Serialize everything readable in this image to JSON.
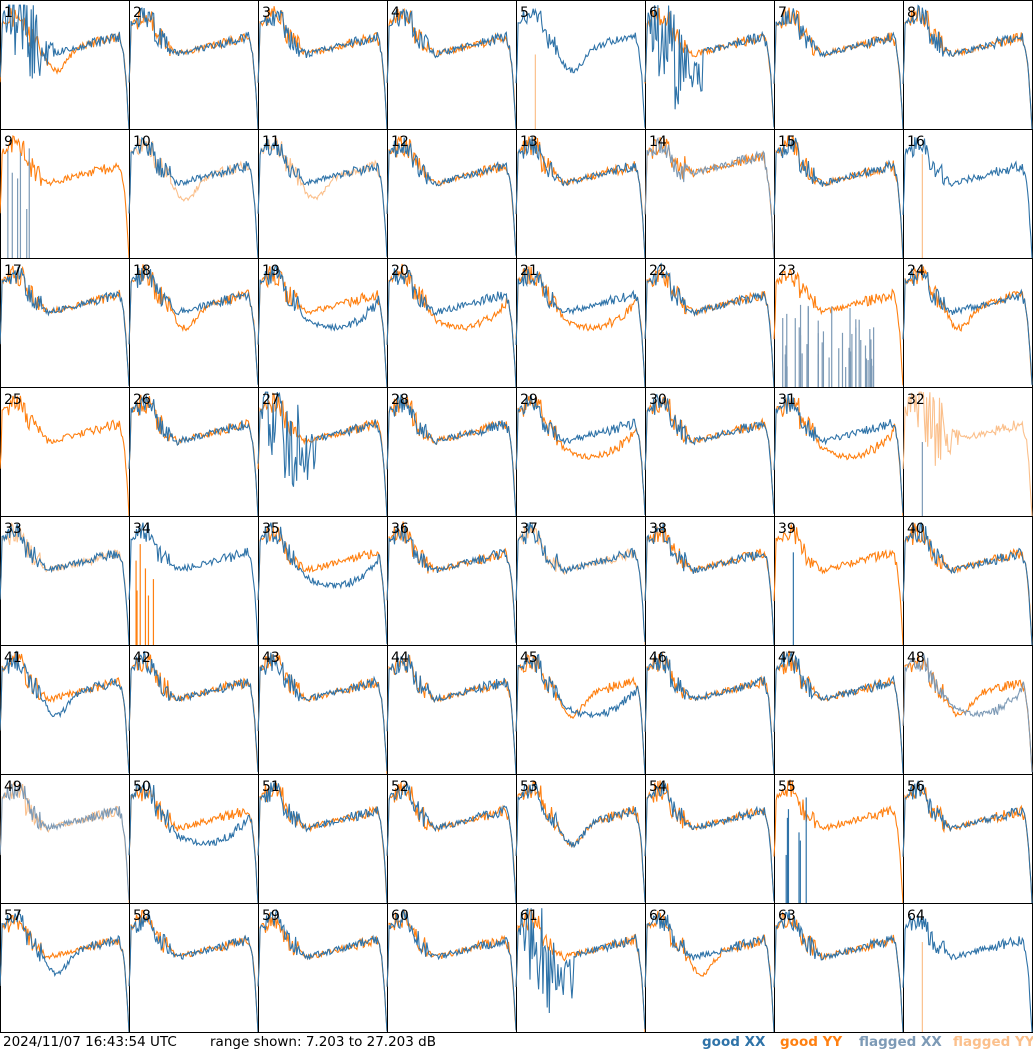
{
  "footer": {
    "timestamp": "2024/11/07 16:43:54 UTC",
    "range_text": "range shown: 7.203 to 27.203 dB"
  },
  "legend": [
    {
      "key": "good_xx",
      "label": "good XX",
      "color": "#2f73a8"
    },
    {
      "key": "good_yy",
      "label": "good YY",
      "color": "#ff8011"
    },
    {
      "key": "flagged_xx",
      "label": "flagged XX",
      "color": "#7d9ab6"
    },
    {
      "key": "flagged_yy",
      "label": "flagged YY",
      "color": "#fbc08c"
    }
  ],
  "chart_data": {
    "type": "line",
    "layout": "small-multiples 8x8",
    "xlabel": "",
    "ylabel": "",
    "ylim": [
      7.203,
      27.203
    ],
    "y_units": "dB",
    "panels": [
      {
        "id": "1",
        "xx": "xnoisy",
        "yy": "dip"
      },
      {
        "id": "2",
        "xx": "normal",
        "yy": "normal"
      },
      {
        "id": "3",
        "xx": "normal",
        "yy": "normal"
      },
      {
        "id": "4",
        "xx": "normal",
        "yy": "normal"
      },
      {
        "id": "5",
        "xx": "dip",
        "yy": "flag_spike"
      },
      {
        "id": "6",
        "xx": "wild",
        "yy": "normal"
      },
      {
        "id": "7",
        "xx": "normal",
        "yy": "normal"
      },
      {
        "id": "8",
        "xx": "normal",
        "yy": "normal"
      },
      {
        "id": "9",
        "xx": "flag_spikes",
        "yy": "normal"
      },
      {
        "id": "10",
        "xx": "normal",
        "yy": "flag_dip"
      },
      {
        "id": "11",
        "xx": "normal",
        "yy": "flag_dip"
      },
      {
        "id": "12",
        "xx": "normal",
        "yy": "normal"
      },
      {
        "id": "13",
        "xx": "normal",
        "yy": "normal"
      },
      {
        "id": "14",
        "xx": "flag_high",
        "yy": "high"
      },
      {
        "id": "15",
        "xx": "normal",
        "yy": "normal"
      },
      {
        "id": "16",
        "xx": "normal",
        "yy": "flag_spike"
      },
      {
        "id": "17",
        "xx": "normal",
        "yy": "normal"
      },
      {
        "id": "18",
        "xx": "normal",
        "yy": "dip"
      },
      {
        "id": "19",
        "xx": "low",
        "yy": "normal"
      },
      {
        "id": "20",
        "xx": "normal",
        "yy": "low"
      },
      {
        "id": "21",
        "xx": "normal",
        "yy": "low"
      },
      {
        "id": "22",
        "xx": "normal",
        "yy": "normal"
      },
      {
        "id": "23",
        "xx": "flag_noise",
        "yy": "normal"
      },
      {
        "id": "24",
        "xx": "normal",
        "yy": "dip"
      },
      {
        "id": "25",
        "xx": "none",
        "yy": "normal"
      },
      {
        "id": "26",
        "xx": "normal",
        "yy": "normal"
      },
      {
        "id": "27",
        "xx": "wild",
        "yy": "normal"
      },
      {
        "id": "28",
        "xx": "normal",
        "yy": "normal"
      },
      {
        "id": "29",
        "xx": "normal",
        "yy": "low"
      },
      {
        "id": "30",
        "xx": "normal",
        "yy": "normal"
      },
      {
        "id": "31",
        "xx": "normal",
        "yy": "low"
      },
      {
        "id": "32",
        "xx": "flag_spike",
        "yy": "flag_noisy"
      },
      {
        "id": "33",
        "xx": "normal",
        "yy": "flag_normal"
      },
      {
        "id": "34",
        "xx": "normal",
        "yy": "spikes"
      },
      {
        "id": "35",
        "xx": "low",
        "yy": "normal"
      },
      {
        "id": "36",
        "xx": "normal",
        "yy": "normal"
      },
      {
        "id": "37",
        "xx": "normal",
        "yy": "flag_normal"
      },
      {
        "id": "38",
        "xx": "normal",
        "yy": "normal"
      },
      {
        "id": "39",
        "xx": "spike",
        "yy": "normal"
      },
      {
        "id": "40",
        "xx": "normal",
        "yy": "normal"
      },
      {
        "id": "41",
        "xx": "dip",
        "yy": "normal"
      },
      {
        "id": "42",
        "xx": "normal",
        "yy": "normal"
      },
      {
        "id": "43",
        "xx": "normal",
        "yy": "normal"
      },
      {
        "id": "44",
        "xx": "normal",
        "yy": "normal"
      },
      {
        "id": "45",
        "xx": "low",
        "yy": "dip"
      },
      {
        "id": "46",
        "xx": "normal",
        "yy": "normal"
      },
      {
        "id": "47",
        "xx": "normal",
        "yy": "normal"
      },
      {
        "id": "48",
        "xx": "flag_low",
        "yy": "dip"
      },
      {
        "id": "49",
        "xx": "flag_normal",
        "yy": "flag_normal"
      },
      {
        "id": "50",
        "xx": "low",
        "yy": "normal"
      },
      {
        "id": "51",
        "xx": "normal",
        "yy": "normal"
      },
      {
        "id": "52",
        "xx": "normal",
        "yy": "normal"
      },
      {
        "id": "53",
        "xx": "dip",
        "yy": "dip"
      },
      {
        "id": "54",
        "xx": "normal",
        "yy": "normal"
      },
      {
        "id": "55",
        "xx": "spikes",
        "yy": "normal"
      },
      {
        "id": "56",
        "xx": "normal",
        "yy": "normal"
      },
      {
        "id": "57",
        "xx": "dip",
        "yy": "normal"
      },
      {
        "id": "58",
        "xx": "normal",
        "yy": "normal"
      },
      {
        "id": "59",
        "xx": "normal",
        "yy": "normal"
      },
      {
        "id": "60",
        "xx": "normal",
        "yy": "normal"
      },
      {
        "id": "61",
        "xx": "wild",
        "yy": "normal"
      },
      {
        "id": "62",
        "xx": "normal",
        "yy": "dip"
      },
      {
        "id": "63",
        "xx": "normal",
        "yy": "normal"
      },
      {
        "id": "64",
        "xx": "normal",
        "yy": "flag_spike"
      }
    ]
  }
}
